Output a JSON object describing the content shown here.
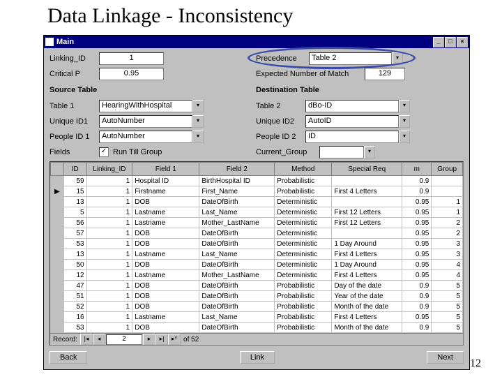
{
  "slide": {
    "title": "Data Linkage - Inconsistency",
    "page_number": "12"
  },
  "window": {
    "title": "Main",
    "buttons": {
      "min": "_",
      "max": "□",
      "close": "×"
    }
  },
  "top_form": {
    "linking_id": {
      "label": "Linking_ID",
      "value": "1"
    },
    "critical_p": {
      "label": "Critical P",
      "value": "0.95"
    },
    "precedence": {
      "label": "Precedence",
      "value": "Table 2"
    },
    "expected_match": {
      "label": "Expected Number of Match",
      "value": "129"
    }
  },
  "source": {
    "header": "Source Table",
    "table1": {
      "label": "Table 1",
      "value": "HearingWithHospital"
    },
    "unique_id1": {
      "label": "Unique ID1",
      "value": "AutoNumber"
    },
    "people_id1": {
      "label": "People ID 1",
      "value": "AutoNumber"
    }
  },
  "dest": {
    "header": "Destination Table",
    "table2": {
      "label": "Table 2",
      "value": "dBo-ID"
    },
    "unique_id2": {
      "label": "Unique ID2",
      "value": "AutoID"
    },
    "people_id2": {
      "label": "People ID 2",
      "value": "ID"
    }
  },
  "fields_row": {
    "label": "Fields",
    "checkbox_label": "Run Till Group",
    "checked": "✓",
    "current_group": {
      "label": "Current_Group",
      "value": ""
    }
  },
  "grid": {
    "columns": [
      "ID",
      "Linking_ID",
      "Field 1",
      "Field 2",
      "Method",
      "Special Req",
      "m",
      "Group"
    ],
    "col_widths": [
      "28px",
      "56px",
      "82px",
      "92px",
      "70px",
      "86px",
      "36px",
      "38px"
    ],
    "rows": [
      [
        "59",
        "1",
        "Hospital ID",
        "BirthHospital ID",
        "Probabilistic",
        "",
        "0.9",
        ""
      ],
      [
        "15",
        "1",
        "Firstname",
        "First_Name",
        "Probabilistic",
        "First 4 Letters",
        "0.9",
        ""
      ],
      [
        "13",
        "1",
        "DOB",
        "DateOfBirth",
        "Deterministic",
        "",
        "0.95",
        "1"
      ],
      [
        "5",
        "1",
        "Lastname",
        "Last_Name",
        "Deterministic",
        "First 12 Letters",
        "0.95",
        "1"
      ],
      [
        "56",
        "1",
        "Lastname",
        "Mother_LastName",
        "Deterministic",
        "First 12 Letters",
        "0.95",
        "2"
      ],
      [
        "57",
        "1",
        "DOB",
        "DateOfBirth",
        "Deterministic",
        "",
        "0.95",
        "2"
      ],
      [
        "53",
        "1",
        "DOB",
        "DateOfBirth",
        "Deterministic",
        "1 Day Around",
        "0.95",
        "3"
      ],
      [
        "13",
        "1",
        "Lastname",
        "Last_Name",
        "Deterministic",
        "First 4 Letters",
        "0.95",
        "3"
      ],
      [
        "50",
        "1",
        "DOB",
        "DateOfBirth",
        "Deterministic",
        "1 Day Around",
        "0.95",
        "4"
      ],
      [
        "12",
        "1",
        "Lastname",
        "Mother_LastName",
        "Deterministic",
        "First 4 Letters",
        "0.95",
        "4"
      ],
      [
        "47",
        "1",
        "DOB",
        "DateOfBirth",
        "Probabilistic",
        "Day of the date",
        "0.9",
        "5"
      ],
      [
        "51",
        "1",
        "DOB",
        "DateOfBirth",
        "Probabilistic",
        "Year of the date",
        "0.9",
        "5"
      ],
      [
        "52",
        "1",
        "DOB",
        "DateOfBirth",
        "Probabilistic",
        "Month of the date",
        "0.9",
        "5"
      ],
      [
        "16",
        "1",
        "Lastname",
        "Last_Name",
        "Probabilistic",
        "First 4 Letters",
        "0.95",
        "5"
      ],
      [
        "53",
        "1",
        "DOB",
        "DateOfBirth",
        "Probabilistic",
        "Month of the date",
        "0.9",
        "5"
      ]
    ]
  },
  "record_nav": {
    "label": "Record:",
    "value": "2",
    "of": "of 52"
  },
  "footer": {
    "back": "Back",
    "link": "Link",
    "next": "Next"
  },
  "row_marker": "▶"
}
